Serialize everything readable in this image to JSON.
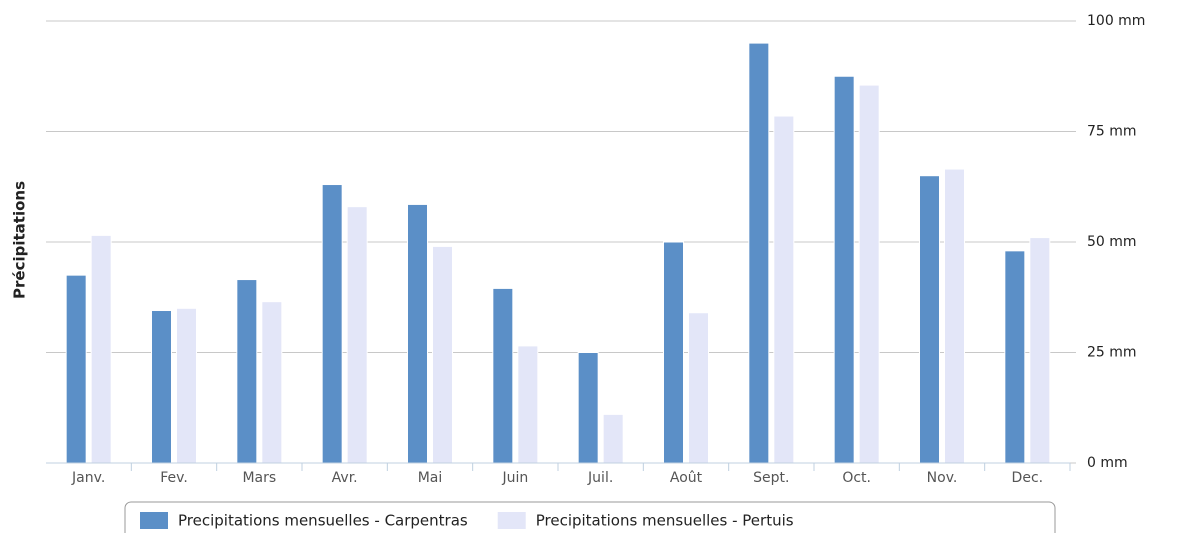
{
  "chart_data": {
    "type": "bar",
    "y_label": "Précipitations",
    "categories": [
      "Janv.",
      "Fev.",
      "Mars",
      "Avr.",
      "Mai",
      "Juin",
      "Juil.",
      "Août",
      "Sept.",
      "Oct.",
      "Nov.",
      "Dec."
    ],
    "series": [
      {
        "name": "Precipitations mensuelles - Carpentras",
        "color": "#5b8fc7",
        "values": [
          42.5,
          34.5,
          41.5,
          63,
          58.5,
          39.5,
          25,
          50,
          95,
          87.5,
          65,
          48
        ]
      },
      {
        "name": "Precipitations mensuelles - Pertuis",
        "color": "#e3e6f8",
        "values": [
          51.5,
          35,
          36.5,
          58,
          49,
          26.5,
          11,
          34,
          78.5,
          85.5,
          66.5,
          51
        ]
      }
    ],
    "ylim": [
      0,
      100
    ],
    "yticks": [
      {
        "value": 0,
        "label": "0 mm"
      },
      {
        "value": 25,
        "label": "25 mm"
      },
      {
        "value": 50,
        "label": "50 mm"
      },
      {
        "value": 75,
        "label": "75 mm"
      },
      {
        "value": 100,
        "label": "100 mm"
      }
    ],
    "grid": true
  }
}
